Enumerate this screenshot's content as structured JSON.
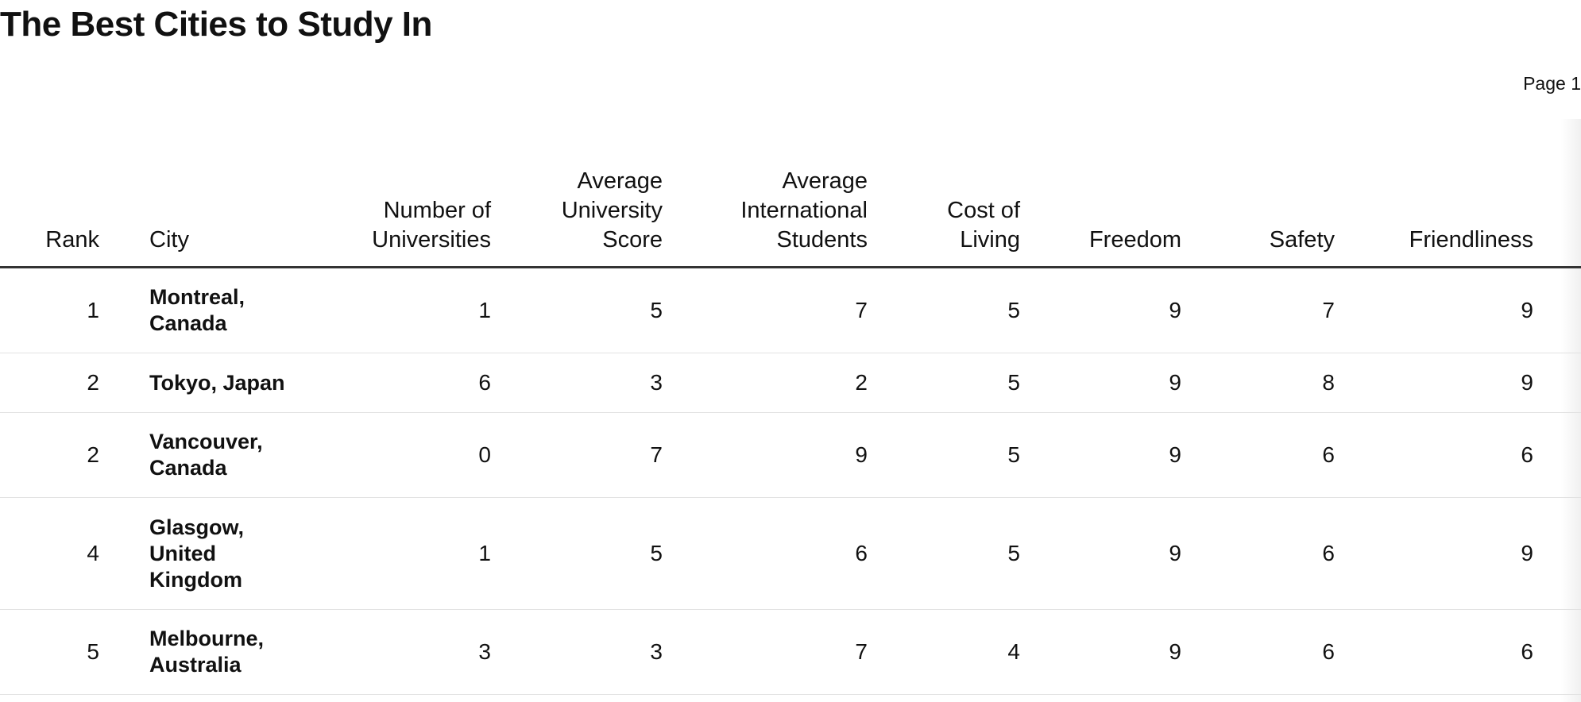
{
  "title": "The Best Cities to Study In",
  "page_label": "Page 1",
  "chart_data": {
    "type": "table",
    "title": "The Best Cities to Study In",
    "columns": [
      {
        "key": "rank",
        "label_lines": [
          "Rank"
        ]
      },
      {
        "key": "city",
        "label_lines": [
          "City"
        ]
      },
      {
        "key": "universities",
        "label_lines": [
          "Number of",
          "Universities"
        ]
      },
      {
        "key": "uni_score",
        "label_lines": [
          "Average",
          "University",
          "Score"
        ]
      },
      {
        "key": "intl_students",
        "label_lines": [
          "Average",
          "International",
          "Students"
        ]
      },
      {
        "key": "cost",
        "label_lines": [
          "Cost of",
          "Living"
        ]
      },
      {
        "key": "freedom",
        "label_lines": [
          "Freedom"
        ]
      },
      {
        "key": "safety",
        "label_lines": [
          "Safety"
        ]
      },
      {
        "key": "friendliness",
        "label_lines": [
          "Friendliness"
        ]
      }
    ],
    "rows": [
      {
        "rank": "1",
        "city_lines": [
          "Montreal,",
          "Canada"
        ],
        "universities": "1",
        "uni_score": "5",
        "intl_students": "7",
        "cost": "5",
        "freedom": "9",
        "safety": "7",
        "friendliness": "9"
      },
      {
        "rank": "2",
        "city_lines": [
          "Tokyo, Japan"
        ],
        "universities": "6",
        "uni_score": "3",
        "intl_students": "2",
        "cost": "5",
        "freedom": "9",
        "safety": "8",
        "friendliness": "9"
      },
      {
        "rank": "2",
        "city_lines": [
          "Vancouver,",
          "Canada"
        ],
        "universities": "0",
        "uni_score": "7",
        "intl_students": "9",
        "cost": "5",
        "freedom": "9",
        "safety": "6",
        "friendliness": "6"
      },
      {
        "rank": "4",
        "city_lines": [
          "Glasgow,",
          "United",
          "Kingdom"
        ],
        "universities": "1",
        "uni_score": "5",
        "intl_students": "6",
        "cost": "5",
        "freedom": "9",
        "safety": "6",
        "friendliness": "9"
      },
      {
        "rank": "5",
        "city_lines": [
          "Melbourne,",
          "Australia"
        ],
        "universities": "3",
        "uni_score": "3",
        "intl_students": "7",
        "cost": "4",
        "freedom": "9",
        "safety": "6",
        "friendliness": "6"
      }
    ]
  }
}
